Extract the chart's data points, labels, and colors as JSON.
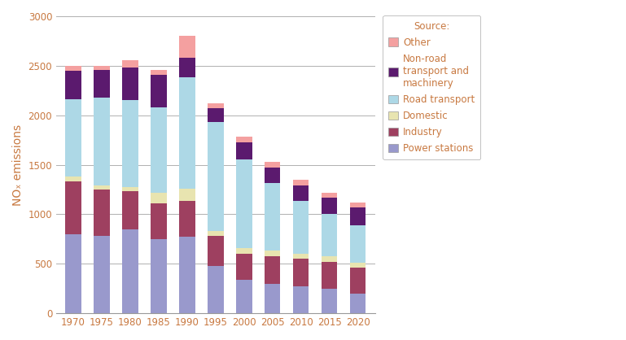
{
  "years": [
    1970,
    1975,
    1980,
    1985,
    1990,
    1995,
    2000,
    2005,
    2010,
    2015,
    2020
  ],
  "categories": [
    "Power stations",
    "Industry",
    "Domestic",
    "Road transport",
    "Non-road transport and machinery",
    "Other"
  ],
  "colors": [
    "#9999cc",
    "#9e4060",
    "#e8e4b0",
    "#add8e6",
    "#5b1a6e",
    "#f4a0a0"
  ],
  "data": {
    "Power stations": [
      800,
      780,
      850,
      750,
      775,
      480,
      340,
      300,
      270,
      250,
      200
    ],
    "Industry": [
      530,
      470,
      380,
      360,
      360,
      300,
      260,
      280,
      280,
      270,
      260
    ],
    "Domestic": [
      50,
      45,
      45,
      110,
      120,
      50,
      60,
      55,
      55,
      55,
      50
    ],
    "Road transport": [
      780,
      880,
      880,
      860,
      1130,
      1100,
      890,
      680,
      530,
      430,
      380
    ],
    "Non-road transport and machinery": [
      290,
      280,
      330,
      330,
      200,
      140,
      180,
      160,
      160,
      160,
      180
    ],
    "Other": [
      50,
      45,
      75,
      50,
      215,
      50,
      50,
      55,
      55,
      55,
      50
    ]
  },
  "ylabel": "NOₓ emissions",
  "ylim": [
    0,
    3000
  ],
  "yticks": [
    0,
    500,
    1000,
    1500,
    2000,
    2500,
    3000
  ],
  "legend_title": "Source:",
  "background_color": "#ffffff",
  "bar_width": 2.8,
  "legend_fontsize": 8.5,
  "axis_color": "#c87941"
}
